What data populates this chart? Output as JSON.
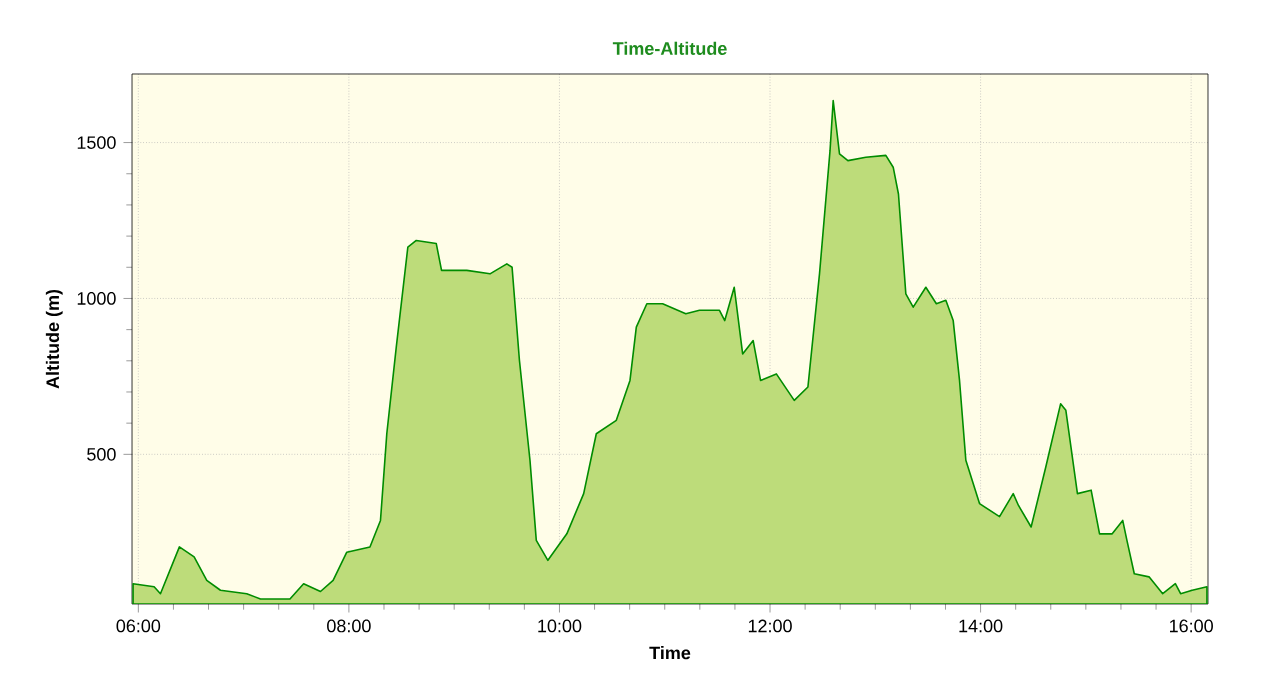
{
  "chart_data": {
    "type": "area",
    "title": "Time-Altitude",
    "xlabel": "Time",
    "ylabel": "Altitude (m)",
    "xlim": [
      5.94,
      16.16
    ],
    "ylim": [
      20,
      1720
    ],
    "xticks": [
      {
        "value": 6,
        "label": "06:00"
      },
      {
        "value": 8,
        "label": "08:00"
      },
      {
        "value": 10,
        "label": "10:00"
      },
      {
        "value": 12,
        "label": "12:00"
      },
      {
        "value": 14,
        "label": "14:00"
      },
      {
        "value": 16,
        "label": "16:00"
      }
    ],
    "yticks": [
      500,
      1000,
      1500
    ],
    "grid": true,
    "series": [
      {
        "color": "#bddc7a",
        "x": [
          5.95,
          6.15,
          6.21,
          6.39,
          6.53,
          6.65,
          6.78,
          7.03,
          7.16,
          7.44,
          7.57,
          7.73,
          7.85,
          7.98,
          8.2,
          8.3,
          8.36,
          8.45,
          8.56,
          8.64,
          8.83,
          8.88,
          9.12,
          9.34,
          9.5,
          9.55,
          9.62,
          9.72,
          9.78,
          9.89,
          10.07,
          10.23,
          10.35,
          10.54,
          10.67,
          10.73,
          10.83,
          10.98,
          11.2,
          11.33,
          11.52,
          11.57,
          11.66,
          11.74,
          11.84,
          11.91,
          12.06,
          12.23,
          12.36,
          12.47,
          12.57,
          12.6,
          12.66,
          12.74,
          12.91,
          13.1,
          13.17,
          13.22,
          13.29,
          13.36,
          13.48,
          13.58,
          13.67,
          13.74,
          13.8,
          13.86,
          13.99,
          14.18,
          14.31,
          14.36,
          14.48,
          14.62,
          14.76,
          14.81,
          14.92,
          15.05,
          15.13,
          15.25,
          15.35,
          15.39,
          15.46,
          15.6,
          15.73,
          15.85,
          15.9,
          16.01,
          16.15
        ],
        "values": [
          85,
          75,
          53,
          203,
          171,
          96,
          64,
          53,
          36,
          36,
          85,
          60,
          96,
          186,
          203,
          288,
          566,
          844,
          1165,
          1186,
          1176,
          1090,
          1090,
          1079,
          1111,
          1100,
          801,
          481,
          224,
          160,
          245,
          374,
          566,
          609,
          737,
          908,
          983,
          983,
          951,
          962,
          962,
          929,
          1036,
          822,
          865,
          737,
          758,
          673,
          716,
          1079,
          1474,
          1635,
          1464,
          1442,
          1453,
          1459,
          1421,
          1335,
          1015,
          972,
          1036,
          983,
          994,
          929,
          737,
          481,
          342,
          300,
          374,
          336,
          267,
          460,
          662,
          641,
          374,
          385,
          245,
          245,
          288,
          224,
          117,
          107,
          53,
          85,
          53,
          64,
          75
        ]
      }
    ]
  }
}
